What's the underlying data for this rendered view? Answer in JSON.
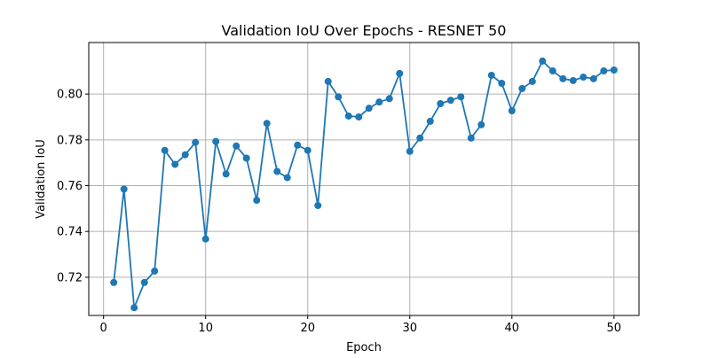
{
  "chart_data": {
    "type": "line",
    "title": "Validation IoU Over Epochs - RESNET 50",
    "xlabel": "Epoch",
    "ylabel": "Validation IoU",
    "xlim": [
      -1.45,
      52.45
    ],
    "ylim": [
      0.7033,
      0.8225
    ],
    "xticks": [
      0,
      10,
      20,
      30,
      40,
      50
    ],
    "yticks": [
      0.72,
      0.74,
      0.76,
      0.78,
      0.8
    ],
    "grid": true,
    "series": [
      {
        "x": [
          1,
          2,
          3,
          4,
          5,
          6,
          7,
          8,
          9,
          10,
          11,
          12,
          13,
          14,
          15,
          16,
          17,
          18,
          19,
          20,
          21,
          22,
          23,
          24,
          25,
          26,
          27,
          28,
          29,
          30,
          31,
          32,
          33,
          34,
          35,
          36,
          37,
          38,
          39,
          40,
          41,
          42,
          43,
          44,
          45,
          46,
          47,
          48,
          49,
          50
        ],
        "values": [
          0.7177,
          0.7585,
          0.7067,
          0.7177,
          0.7227,
          0.7754,
          0.7693,
          0.7735,
          0.7789,
          0.7367,
          0.7793,
          0.7651,
          0.7773,
          0.772,
          0.7536,
          0.7872,
          0.7662,
          0.7635,
          0.7777,
          0.7754,
          0.7513,
          0.8055,
          0.7988,
          0.7904,
          0.79,
          0.7938,
          0.7965,
          0.798,
          0.809,
          0.775,
          0.7808,
          0.7881,
          0.7958,
          0.7973,
          0.7988,
          0.7808,
          0.7866,
          0.8082,
          0.8047,
          0.7927,
          0.8024,
          0.8055,
          0.8144,
          0.8101,
          0.8067,
          0.8059,
          0.8074,
          0.8067,
          0.8101,
          0.8105
        ],
        "color": "#1f77b4"
      }
    ]
  }
}
